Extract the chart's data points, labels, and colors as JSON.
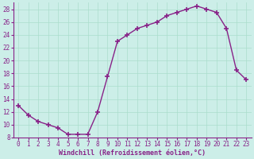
{
  "x": [
    0,
    1,
    2,
    3,
    4,
    5,
    6,
    7,
    8,
    9,
    10,
    11,
    12,
    13,
    14,
    15,
    16,
    17,
    18,
    19,
    20,
    21,
    22,
    23
  ],
  "y": [
    13,
    11.5,
    10.5,
    10,
    9.5,
    8.5,
    8.5,
    8.5,
    12,
    17.5,
    23,
    24,
    25,
    25.5,
    26,
    27,
    27.5,
    28,
    28.5,
    28,
    27.5,
    25,
    18.5,
    17
  ],
  "line_color": "#882288",
  "marker": "+",
  "markersize": 4,
  "markeredgewidth": 1.2,
  "linewidth": 1.0,
  "bg_color": "#cceee8",
  "grid_color": "#aaddcc",
  "xlabel": "Windchill (Refroidissement éolien,°C)",
  "xlabel_color": "#882288",
  "tick_color": "#882288",
  "spine_color": "#882288",
  "ylim": [
    8,
    29
  ],
  "xlim": [
    -0.5,
    23.5
  ],
  "yticks": [
    8,
    10,
    12,
    14,
    16,
    18,
    20,
    22,
    24,
    26,
    28
  ],
  "xticks": [
    0,
    1,
    2,
    3,
    4,
    5,
    6,
    7,
    8,
    9,
    10,
    11,
    12,
    13,
    14,
    15,
    16,
    17,
    18,
    19,
    20,
    21,
    22,
    23
  ],
  "xlabel_fontsize": 6.0,
  "tick_fontsize": 5.5,
  "xlabel_fontweight": "bold"
}
